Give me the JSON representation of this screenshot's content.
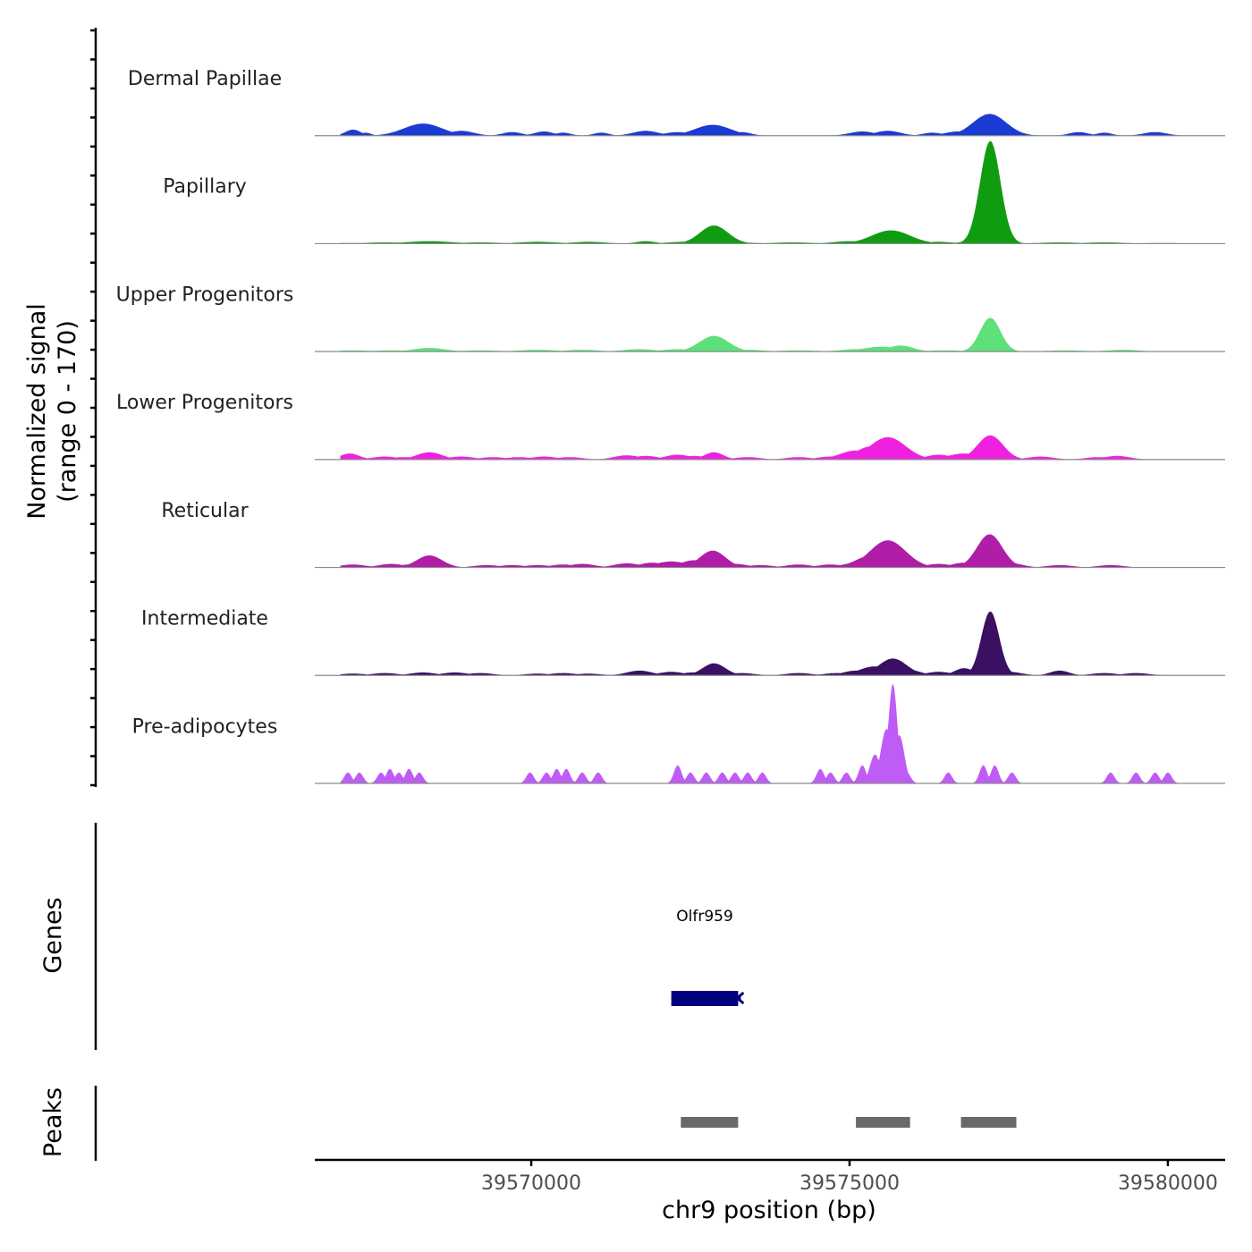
{
  "chart_data": {
    "type": "area",
    "title": "",
    "chromosome": "chr9",
    "xlabel": "chr9 position (bp)",
    "ylabel_line1": "Normalized signal",
    "ylabel_line2": "(range 0 - 170)",
    "xlim": [
      39566600,
      39580900
    ],
    "ylim": [
      0,
      170
    ],
    "xticks": [
      39570000,
      39575000,
      39580000
    ],
    "xtick_labels": [
      "39570000",
      "39575000",
      "39580000"
    ],
    "series": [
      {
        "name": "Dermal Papillae",
        "color": "#1a3bd4",
        "peaks": [
          [
            39567200,
            10,
            120
          ],
          [
            39567400,
            5,
            80
          ],
          [
            39568300,
            20,
            300
          ],
          [
            39568600,
            8,
            200
          ],
          [
            39568900,
            8,
            200
          ],
          [
            39569700,
            6,
            150
          ],
          [
            39570200,
            7,
            150
          ],
          [
            39570500,
            5,
            120
          ],
          [
            39571100,
            5,
            120
          ],
          [
            39571800,
            8,
            200
          ],
          [
            39572300,
            6,
            200
          ],
          [
            39572600,
            6,
            150
          ],
          [
            39572850,
            18,
            280
          ],
          [
            39573300,
            6,
            150
          ],
          [
            39575200,
            7,
            200
          ],
          [
            39575600,
            8,
            200
          ],
          [
            39576300,
            5,
            150
          ],
          [
            39576700,
            7,
            200
          ],
          [
            39577200,
            36,
            260
          ],
          [
            39578600,
            6,
            150
          ],
          [
            39579000,
            5,
            120
          ],
          [
            39579800,
            6,
            180
          ]
        ]
      },
      {
        "name": "Papillary",
        "color": "#109c10",
        "peaks": [
          [
            39567100,
            1,
            300
          ],
          [
            39567700,
            2,
            300
          ],
          [
            39568400,
            4,
            350
          ],
          [
            39569200,
            2,
            300
          ],
          [
            39570100,
            3,
            300
          ],
          [
            39570900,
            3,
            250
          ],
          [
            39571800,
            4,
            150
          ],
          [
            39572400,
            3,
            250
          ],
          [
            39572600,
            3,
            200
          ],
          [
            39572870,
            30,
            220
          ],
          [
            39573200,
            2,
            300
          ],
          [
            39574100,
            2,
            300
          ],
          [
            39575000,
            4,
            250
          ],
          [
            39575300,
            4,
            300
          ],
          [
            39575650,
            22,
            300
          ],
          [
            39576400,
            3,
            200
          ],
          [
            39576850,
            3,
            150
          ],
          [
            39577210,
            170,
            160
          ],
          [
            39578300,
            2,
            300
          ],
          [
            39579000,
            2,
            300
          ],
          [
            39579900,
            1,
            300
          ]
        ]
      },
      {
        "name": "Upper Progenitors",
        "color": "#5ee07a",
        "peaks": [
          [
            39567200,
            2,
            300
          ],
          [
            39567800,
            2,
            300
          ],
          [
            39568400,
            6,
            250
          ],
          [
            39569200,
            2,
            300
          ],
          [
            39570100,
            3,
            300
          ],
          [
            39570800,
            3,
            250
          ],
          [
            39571700,
            4,
            250
          ],
          [
            39572300,
            4,
            250
          ],
          [
            39572870,
            26,
            230
          ],
          [
            39573400,
            3,
            250
          ],
          [
            39574200,
            2,
            300
          ],
          [
            39575100,
            4,
            250
          ],
          [
            39575500,
            8,
            300
          ],
          [
            39575800,
            10,
            200
          ],
          [
            39576500,
            2,
            300
          ],
          [
            39577210,
            56,
            160
          ],
          [
            39578400,
            2,
            300
          ],
          [
            39579300,
            3,
            250
          ]
        ]
      },
      {
        "name": "Lower Progenitors",
        "color": "#f020e0",
        "peaks": [
          [
            39567150,
            10,
            150
          ],
          [
            39567700,
            5,
            200
          ],
          [
            39568000,
            4,
            200
          ],
          [
            39568400,
            12,
            200
          ],
          [
            39568900,
            5,
            200
          ],
          [
            39569400,
            4,
            200
          ],
          [
            39569800,
            4,
            200
          ],
          [
            39570200,
            5,
            200
          ],
          [
            39570600,
            4,
            200
          ],
          [
            39571500,
            7,
            200
          ],
          [
            39571800,
            6,
            200
          ],
          [
            39572300,
            8,
            200
          ],
          [
            39572550,
            6,
            200
          ],
          [
            39572870,
            12,
            150
          ],
          [
            39573400,
            4,
            200
          ],
          [
            39574200,
            4,
            200
          ],
          [
            39574700,
            5,
            200
          ],
          [
            39575100,
            15,
            250
          ],
          [
            39575350,
            22,
            250
          ],
          [
            39575600,
            37,
            280
          ],
          [
            39575850,
            15,
            200
          ],
          [
            39576400,
            8,
            200
          ],
          [
            39576800,
            10,
            250
          ],
          [
            39577210,
            40,
            200
          ],
          [
            39578000,
            5,
            200
          ],
          [
            39578900,
            4,
            200
          ],
          [
            39579200,
            6,
            200
          ]
        ]
      },
      {
        "name": "Reticular",
        "color": "#b01ea8",
        "peaks": [
          [
            39567200,
            5,
            200
          ],
          [
            39567800,
            6,
            200
          ],
          [
            39568100,
            5,
            200
          ],
          [
            39568400,
            20,
            200
          ],
          [
            39569300,
            4,
            200
          ],
          [
            39569700,
            4,
            200
          ],
          [
            39570100,
            4,
            200
          ],
          [
            39570500,
            5,
            200
          ],
          [
            39570800,
            6,
            200
          ],
          [
            39571500,
            7,
            200
          ],
          [
            39571900,
            8,
            200
          ],
          [
            39572200,
            10,
            250
          ],
          [
            39572550,
            12,
            200
          ],
          [
            39572850,
            28,
            200
          ],
          [
            39573200,
            6,
            200
          ],
          [
            39573600,
            4,
            200
          ],
          [
            39574200,
            5,
            200
          ],
          [
            39574700,
            5,
            200
          ],
          [
            39575100,
            8,
            200
          ],
          [
            39575350,
            20,
            250
          ],
          [
            39575600,
            45,
            280
          ],
          [
            39575850,
            20,
            200
          ],
          [
            39576400,
            6,
            200
          ],
          [
            39576800,
            8,
            200
          ],
          [
            39577200,
            55,
            200
          ],
          [
            39577500,
            8,
            200
          ],
          [
            39578300,
            4,
            200
          ],
          [
            39579100,
            4,
            200
          ]
        ]
      },
      {
        "name": "Intermediate",
        "color": "#3b0f62",
        "peaks": [
          [
            39567200,
            3,
            200
          ],
          [
            39567700,
            4,
            200
          ],
          [
            39568300,
            5,
            200
          ],
          [
            39568800,
            5,
            200
          ],
          [
            39569200,
            4,
            200
          ],
          [
            39570100,
            3,
            200
          ],
          [
            39570500,
            4,
            200
          ],
          [
            39570900,
            3,
            200
          ],
          [
            39571700,
            8,
            200
          ],
          [
            39572200,
            6,
            200
          ],
          [
            39572550,
            5,
            200
          ],
          [
            39572870,
            20,
            180
          ],
          [
            39573300,
            4,
            200
          ],
          [
            39574200,
            4,
            200
          ],
          [
            39574800,
            4,
            200
          ],
          [
            39575100,
            8,
            200
          ],
          [
            39575400,
            15,
            250
          ],
          [
            39575680,
            28,
            220
          ],
          [
            39575900,
            10,
            200
          ],
          [
            39576400,
            6,
            200
          ],
          [
            39576800,
            12,
            150
          ],
          [
            39577210,
            106,
            140
          ],
          [
            39577500,
            6,
            200
          ],
          [
            39578300,
            8,
            150
          ],
          [
            39579000,
            4,
            200
          ],
          [
            39579500,
            4,
            200
          ]
        ]
      },
      {
        "name": "Pre-adipocytes",
        "color": "#bf5cf6",
        "peaks": [
          [
            39567120,
            18,
            60
          ],
          [
            39567300,
            18,
            60
          ],
          [
            39567640,
            18,
            60
          ],
          [
            39567780,
            24,
            60
          ],
          [
            39567920,
            18,
            60
          ],
          [
            39568080,
            24,
            60
          ],
          [
            39568240,
            18,
            60
          ],
          [
            39569980,
            18,
            60
          ],
          [
            39570240,
            18,
            60
          ],
          [
            39570400,
            24,
            60
          ],
          [
            39570550,
            24,
            60
          ],
          [
            39570800,
            18,
            60
          ],
          [
            39571050,
            18,
            60
          ],
          [
            39572300,
            30,
            60
          ],
          [
            39572500,
            18,
            60
          ],
          [
            39572750,
            18,
            60
          ],
          [
            39573000,
            18,
            60
          ],
          [
            39573200,
            18,
            60
          ],
          [
            39573400,
            18,
            60
          ],
          [
            39573630,
            18,
            60
          ],
          [
            39574540,
            24,
            60
          ],
          [
            39574700,
            18,
            60
          ],
          [
            39574950,
            18,
            60
          ],
          [
            39575200,
            30,
            60
          ],
          [
            39575400,
            48,
            80
          ],
          [
            39575580,
            90,
            90
          ],
          [
            39575680,
            165,
            70
          ],
          [
            39575780,
            80,
            80
          ],
          [
            39575900,
            18,
            60
          ],
          [
            39576550,
            18,
            60
          ],
          [
            39577100,
            30,
            60
          ],
          [
            39577280,
            30,
            60
          ],
          [
            39577550,
            18,
            60
          ],
          [
            39579100,
            18,
            60
          ],
          [
            39579500,
            18,
            60
          ],
          [
            39579800,
            18,
            60
          ],
          [
            39580000,
            18,
            60
          ]
        ]
      }
    ],
    "genes": {
      "label": "Genes",
      "items": [
        {
          "name": "Olfr959",
          "start": 39572200,
          "end": 39573250,
          "strand": "-",
          "color": "#00007f"
        }
      ]
    },
    "peaks_track": {
      "label": "Peaks",
      "color": "#696969",
      "regions": [
        [
          39572350,
          39573250
        ],
        [
          39575100,
          39575950
        ],
        [
          39576750,
          39577620
        ]
      ]
    }
  }
}
